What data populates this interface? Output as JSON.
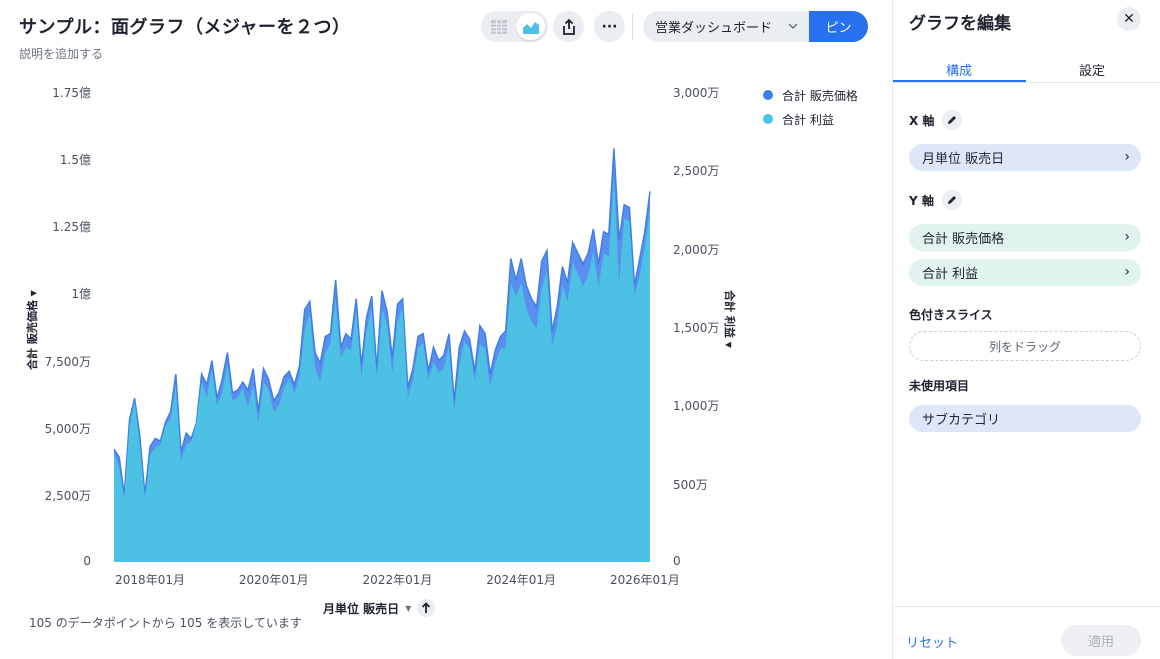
{
  "header": {
    "title": "サンプル：面グラフ（メジャーを２つ）",
    "subtitle": "説明を追加する",
    "dashboard_select": "営業ダッシュボード",
    "pin_label": "ピン",
    "more_label": "···"
  },
  "axes": {
    "y_left_label": "合計 販売価格",
    "y_right_label": "合計 利益",
    "x_label": "月単位 販売日"
  },
  "footnote": {
    "text": "105 のデータポイントから 105 を表示しています"
  },
  "chart_data": {
    "type": "area",
    "x_start": "2017-06",
    "x_end": "2026-02",
    "x_tick_labels": [
      "2018年01月",
      "2020年01月",
      "2022年01月",
      "2024年01月",
      "2026年01月"
    ],
    "y_left": {
      "min": 0,
      "max": 175000000,
      "tick_labels": [
        "0",
        "2,500万",
        "5,000万",
        "7,500万",
        "1億",
        "1.25億",
        "1.5億",
        "1.75億"
      ]
    },
    "y_right": {
      "min": 0,
      "max": 30000000,
      "tick_labels": [
        "0",
        "500万",
        "1,000万",
        "1,500万",
        "2,000万",
        "2,500万",
        "3,000万"
      ]
    },
    "legend_position": "top-right",
    "series": [
      {
        "name": "合計 販売価格",
        "color": "#3f7fe6",
        "axis": "left",
        "values": [
          42,
          39,
          25,
          53,
          61,
          47,
          25,
          43,
          46,
          45,
          52,
          56,
          70,
          41,
          48,
          46,
          52,
          70,
          66,
          75,
          61,
          68,
          78,
          63,
          64,
          67,
          64,
          72,
          56,
          72,
          68,
          60,
          63,
          69,
          71,
          66,
          73,
          94,
          97,
          78,
          74,
          84,
          85,
          105,
          80,
          85,
          83,
          98,
          73,
          91,
          99,
          72,
          101,
          93,
          76,
          96,
          98,
          65,
          72,
          84,
          85,
          71,
          80,
          75,
          77,
          85,
          60,
          80,
          86,
          83,
          71,
          88,
          85,
          70,
          79,
          84,
          86,
          113,
          105,
          113,
          103,
          98,
          95,
          112,
          116,
          86,
          95,
          110,
          104,
          119,
          115,
          111,
          115,
          124,
          111,
          123,
          122,
          154,
          120,
          133,
          132,
          103,
          113,
          123,
          138
        ]
      },
      {
        "name": "合計 利益",
        "color": "#4cc1e3",
        "axis": "right",
        "values": [
          6.9,
          6.0,
          4.1,
          8.7,
          10.3,
          7.5,
          4.1,
          6.8,
          7.3,
          7.5,
          8.7,
          9.1,
          11.3,
          6.5,
          7.5,
          7.7,
          8.9,
          11.5,
          10.5,
          12.3,
          10.0,
          10.8,
          12.6,
          10.3,
          10.5,
          11.1,
          9.9,
          11.3,
          8.9,
          11.5,
          11.0,
          9.6,
          10.0,
          11.1,
          11.7,
          10.8,
          11.8,
          14.8,
          15.9,
          12.4,
          11.5,
          13.3,
          14.0,
          16.8,
          13.0,
          13.7,
          13.5,
          16.1,
          11.8,
          14.8,
          16.1,
          11.8,
          16.2,
          15.1,
          12.1,
          15.4,
          16.2,
          10.5,
          11.6,
          13.7,
          14.0,
          11.6,
          12.8,
          12.1,
          12.3,
          13.8,
          9.7,
          12.6,
          14.1,
          13.6,
          11.6,
          13.9,
          13.6,
          11.2,
          12.7,
          13.6,
          13.7,
          17.8,
          17.0,
          17.8,
          16.2,
          15.4,
          14.9,
          17.5,
          18.6,
          13.8,
          15.1,
          17.7,
          16.6,
          19.1,
          18.4,
          17.6,
          18.3,
          19.8,
          17.6,
          19.7,
          19.5,
          24.6,
          17.7,
          21.9,
          21.8,
          17.0,
          18.3,
          20.1,
          22.5
        ]
      }
    ]
  },
  "panel": {
    "title": "グラフを編集",
    "tab_compose": "構成",
    "tab_settings": "設定",
    "x_axis_label": "X 軸",
    "x_field": "月単位 販売日",
    "y_axis_label": "Y 軸",
    "y_fields": [
      "合計 販売価格",
      "合計 利益"
    ],
    "color_slice_label": "色付きスライス",
    "dropzone_text": "列をドラッグ",
    "unused_label": "未使用項目",
    "unused_fields": [
      "サブカテゴリ"
    ],
    "reset_label": "リセット",
    "apply_label": "適用"
  }
}
